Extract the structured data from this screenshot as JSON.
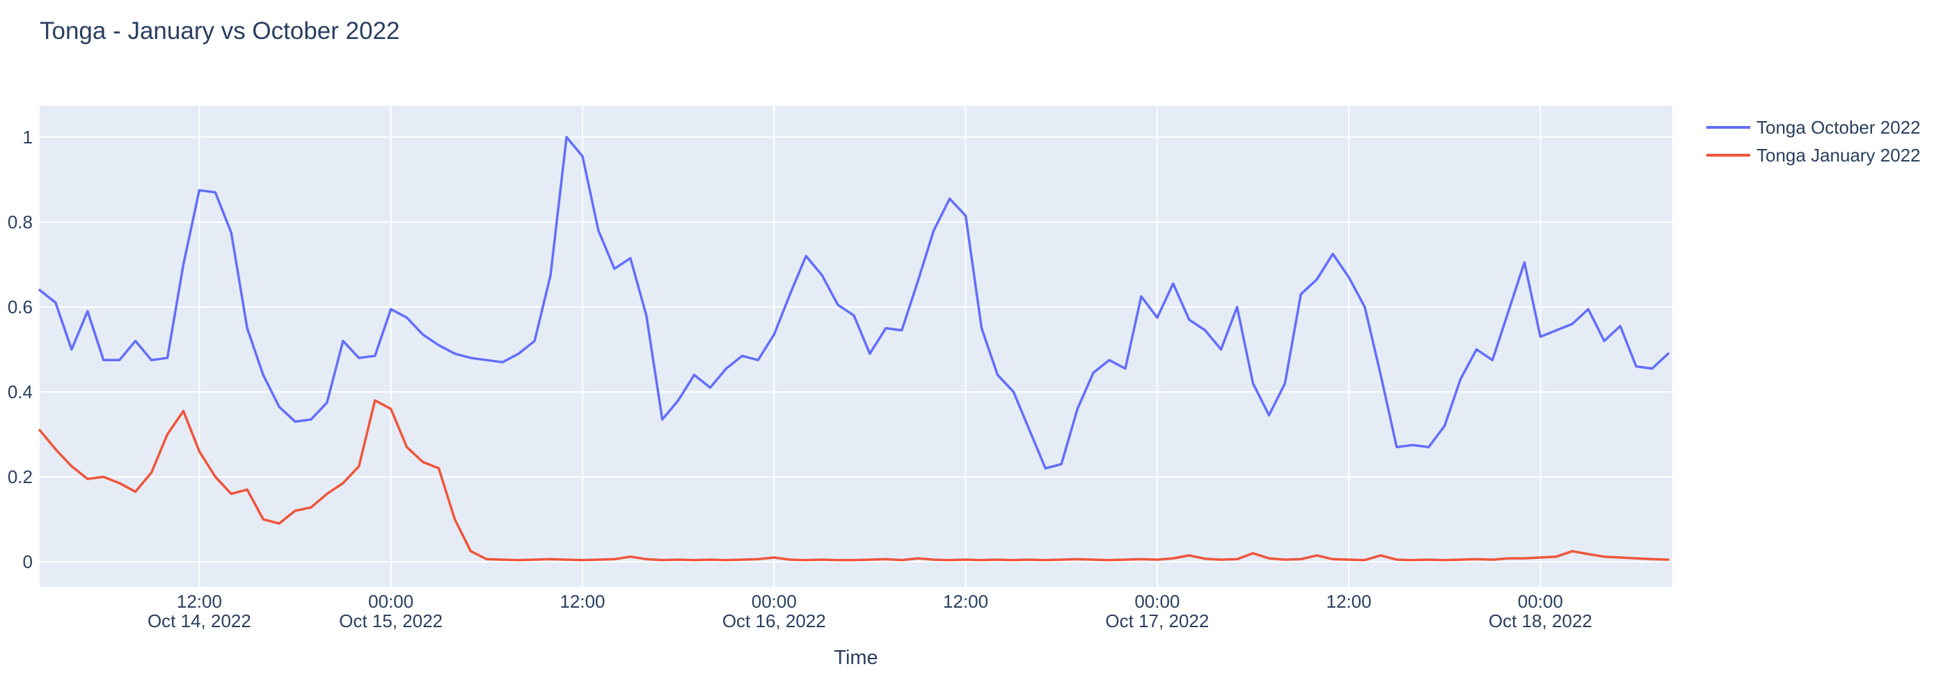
{
  "title": "Tonga - January vs October 2022",
  "colors": {
    "accent_blue": "#636EFA",
    "accent_red": "#EF553B",
    "plot_background": "#E5ECF6",
    "grid": "#FFFFFF",
    "text": "#2A3F5F",
    "paper_background": "#FFFFFF"
  },
  "legend": {
    "items": [
      {
        "label": "Tonga October 2022",
        "color": "#636EFA"
      },
      {
        "label": "Tonga January 2022",
        "color": "#EF553B"
      }
    ]
  },
  "chart_data": {
    "type": "line",
    "title": "Tonga - January vs October 2022",
    "xlabel": "Time",
    "ylabel": "",
    "x_start": "2022-10-14 02:00",
    "x_end": "2022-10-18 08:00",
    "x_interval_hours": 1,
    "n_points": 103,
    "ylim": [
      -0.06,
      1.07
    ],
    "grid": true,
    "legend_position": "right-top",
    "yticks": [
      {
        "value": 0,
        "label": "0"
      },
      {
        "value": 0.2,
        "label": "0.2"
      },
      {
        "value": 0.4,
        "label": "0.4"
      },
      {
        "value": 0.6,
        "label": "0.6"
      },
      {
        "value": 0.8,
        "label": "0.8"
      },
      {
        "value": 1,
        "label": "1"
      }
    ],
    "xticks": [
      {
        "hour_offset": 10,
        "time": "12:00",
        "date": "Oct 14, 2022"
      },
      {
        "hour_offset": 22,
        "time": "00:00",
        "date": "Oct 15, 2022"
      },
      {
        "hour_offset": 34,
        "time": "12:00",
        "date": ""
      },
      {
        "hour_offset": 46,
        "time": "00:00",
        "date": "Oct 16, 2022"
      },
      {
        "hour_offset": 58,
        "time": "12:00",
        "date": ""
      },
      {
        "hour_offset": 70,
        "time": "00:00",
        "date": "Oct 17, 2022"
      },
      {
        "hour_offset": 82,
        "time": "12:00",
        "date": ""
      },
      {
        "hour_offset": 94,
        "time": "00:00",
        "date": "Oct 18, 2022"
      }
    ],
    "series": [
      {
        "name": "Tonga October 2022",
        "color": "#636EFA",
        "values": [
          0.64,
          0.61,
          0.5,
          0.59,
          0.475,
          0.475,
          0.52,
          0.475,
          0.48,
          0.7,
          0.875,
          0.87,
          0.775,
          0.55,
          0.44,
          0.365,
          0.33,
          0.335,
          0.375,
          0.52,
          0.48,
          0.485,
          0.595,
          0.575,
          0.535,
          0.51,
          0.49,
          0.48,
          0.475,
          0.47,
          0.49,
          0.52,
          0.675,
          1.0,
          0.955,
          0.78,
          0.69,
          0.715,
          0.58,
          0.335,
          0.38,
          0.44,
          0.41,
          0.455,
          0.485,
          0.475,
          0.535,
          0.63,
          0.72,
          0.675,
          0.605,
          0.58,
          0.49,
          0.55,
          0.545,
          0.66,
          0.78,
          0.855,
          0.815,
          0.55,
          0.44,
          0.4,
          0.31,
          0.22,
          0.23,
          0.36,
          0.445,
          0.475,
          0.455,
          0.625,
          0.575,
          0.655,
          0.57,
          0.545,
          0.5,
          0.6,
          0.42,
          0.345,
          0.42,
          0.63,
          0.665,
          0.725,
          0.67,
          0.6,
          0.44,
          0.27,
          0.275,
          0.27,
          0.32,
          0.43,
          0.5,
          0.475,
          0.59,
          0.705,
          0.53,
          0.545,
          0.56,
          0.595,
          0.52,
          0.555,
          0.46,
          0.455,
          0.49
        ]
      },
      {
        "name": "Tonga January 2022",
        "color": "#EF553B",
        "values": [
          0.31,
          0.265,
          0.225,
          0.195,
          0.2,
          0.185,
          0.165,
          0.21,
          0.3,
          0.355,
          0.26,
          0.2,
          0.16,
          0.17,
          0.1,
          0.09,
          0.12,
          0.128,
          0.16,
          0.185,
          0.225,
          0.38,
          0.36,
          0.27,
          0.235,
          0.22,
          0.1,
          0.025,
          0.006,
          0.005,
          0.004,
          0.005,
          0.006,
          0.005,
          0.004,
          0.005,
          0.006,
          0.012,
          0.006,
          0.004,
          0.005,
          0.004,
          0.005,
          0.004,
          0.005,
          0.006,
          0.01,
          0.005,
          0.004,
          0.005,
          0.004,
          0.004,
          0.005,
          0.006,
          0.004,
          0.008,
          0.005,
          0.004,
          0.005,
          0.004,
          0.005,
          0.004,
          0.005,
          0.004,
          0.005,
          0.006,
          0.005,
          0.004,
          0.005,
          0.006,
          0.005,
          0.008,
          0.015,
          0.007,
          0.005,
          0.006,
          0.02,
          0.008,
          0.005,
          0.006,
          0.015,
          0.006,
          0.005,
          0.004,
          0.015,
          0.005,
          0.004,
          0.005,
          0.004,
          0.005,
          0.006,
          0.005,
          0.008,
          0.008,
          0.01,
          0.012,
          0.025,
          0.018,
          0.012,
          0.01,
          0.008,
          0.006,
          0.005
        ]
      }
    ]
  }
}
